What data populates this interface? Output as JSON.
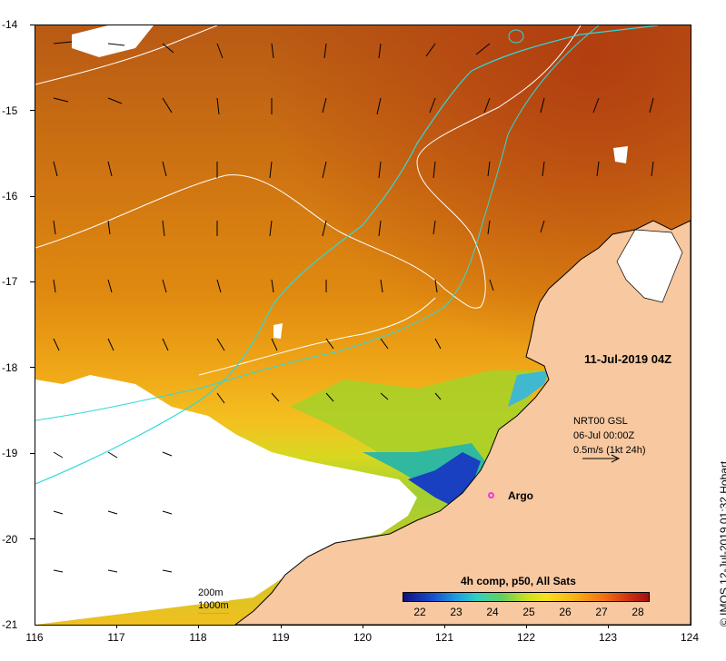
{
  "map": {
    "y_labels": [
      "-14",
      "-15",
      "-16",
      "-17",
      "-18",
      "-19",
      "-20",
      "-21"
    ],
    "x_labels": [
      "116",
      "117",
      "118",
      "119",
      "120",
      "121",
      "122",
      "123",
      "124"
    ],
    "date_label": "11-Jul-2019 04Z",
    "product_lines": [
      "NRT00 GSL",
      "06-Jul 00:00Z",
      "0.5m/s (1kt 24h)"
    ],
    "argo_label": "Argo",
    "contour_legend": [
      "200m",
      "1000m"
    ],
    "colorbar_title": "4h comp, p50, All Sats",
    "colorbar_ticks": [
      "22",
      "23",
      "24",
      "25",
      "26",
      "27",
      "28"
    ],
    "credit": "© IMOS 12-Jul-2019 01:32 Hobart",
    "colors": {
      "land": "#f8c8a0",
      "contour_200m": "#ffffff",
      "contour_1000m": "#30d8d8",
      "argo": "#e83ad8"
    },
    "lon_range": [
      116,
      124
    ],
    "lat_range": [
      -21,
      -14
    ]
  }
}
